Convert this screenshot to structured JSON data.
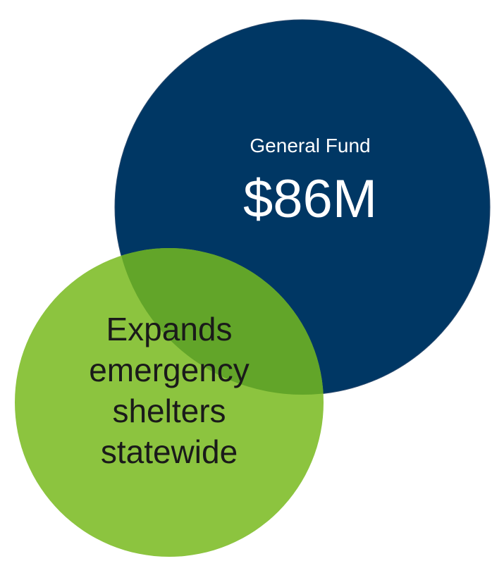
{
  "colors": {
    "background": "#ffffff",
    "fund_circle": "#003764",
    "fund_circle_stroke": "#2a4a6e",
    "green_circle": "#8cc43f",
    "green_overlap": "#62a529",
    "fund_text": "#ffffff",
    "desc_text": "#1a1a1a"
  },
  "fund": {
    "label": "General Fund",
    "amount": "$86M"
  },
  "description": {
    "lines": [
      "Expands",
      "emergency",
      "shelters",
      "statewide"
    ]
  }
}
